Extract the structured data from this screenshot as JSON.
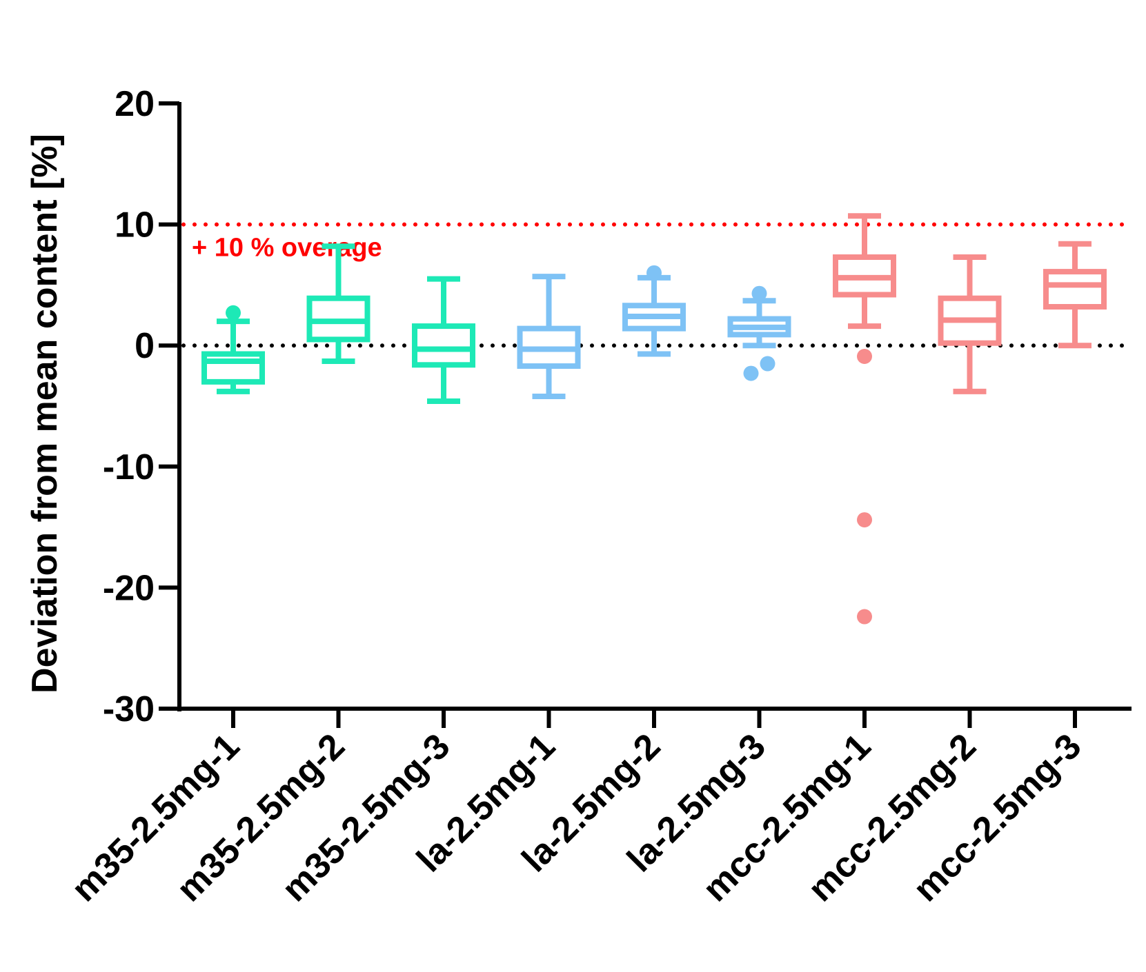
{
  "chart_data": {
    "type": "box",
    "title": "",
    "xlabel": "",
    "ylabel": "Deviation from mean content [%]",
    "ylim": [
      -30,
      20
    ],
    "yticks": [
      20,
      10,
      0,
      -10,
      -20,
      -30
    ],
    "grid": false,
    "legend": "none",
    "reference_lines": [
      {
        "name": "overage-line",
        "y": 10,
        "color": "#ff0000",
        "style": "dotted",
        "label": "+ 10 % overage"
      },
      {
        "name": "zero-line",
        "y": 0,
        "color": "#000000",
        "style": "dotted",
        "label": ""
      }
    ],
    "categories": [
      "m35-2.5mg-1",
      "m35-2.5mg-2",
      "m35-2.5mg-3",
      "la-2.5mg-1",
      "la-2.5mg-2",
      "la-2.5mg-3",
      "mcc-2.5mg-1",
      "mcc-2.5mg-2",
      "mcc-2.5mg-3"
    ],
    "series": [
      {
        "name": "m35-2.5mg-1",
        "color": "#1de9b6",
        "whisker_low": -3.8,
        "q1": -3.0,
        "median": -1.3,
        "q3": -0.7,
        "whisker_high": 2.0,
        "outliers": [
          2.7
        ]
      },
      {
        "name": "m35-2.5mg-2",
        "color": "#1de9b6",
        "whisker_low": -1.3,
        "q1": 0.5,
        "median": 2.0,
        "q3": 3.9,
        "whisker_high": 8.2,
        "outliers": []
      },
      {
        "name": "m35-2.5mg-3",
        "color": "#1de9b6",
        "whisker_low": -4.6,
        "q1": -1.6,
        "median": -0.3,
        "q3": 1.6,
        "whisker_high": 5.5,
        "outliers": []
      },
      {
        "name": "la-2.5mg-1",
        "color": "#7ec2f5",
        "whisker_low": -4.2,
        "q1": -1.7,
        "median": -0.3,
        "q3": 1.4,
        "whisker_high": 5.7,
        "outliers": []
      },
      {
        "name": "la-2.5mg-2",
        "color": "#7ec2f5",
        "whisker_low": -0.7,
        "q1": 1.4,
        "median": 2.4,
        "q3": 3.3,
        "whisker_high": 5.6,
        "outliers": [
          6.0
        ]
      },
      {
        "name": "la-2.5mg-3",
        "color": "#7ec2f5",
        "whisker_low": 0.0,
        "q1": 0.9,
        "median": 1.5,
        "q3": 2.2,
        "whisker_high": 3.7,
        "outliers": [
          4.3,
          -1.5,
          -2.3
        ]
      },
      {
        "name": "mcc-2.5mg-1",
        "color": "#f78c8c",
        "whisker_low": 1.6,
        "q1": 4.2,
        "median": 5.6,
        "q3": 7.3,
        "whisker_high": 10.7,
        "outliers": [
          -0.9,
          -14.4,
          -22.4
        ]
      },
      {
        "name": "mcc-2.5mg-2",
        "color": "#f78c8c",
        "whisker_low": -3.8,
        "q1": 0.2,
        "median": 2.1,
        "q3": 3.9,
        "whisker_high": 7.3,
        "outliers": []
      },
      {
        "name": "mcc-2.5mg-3",
        "color": "#f78c8c",
        "whisker_low": 0.0,
        "q1": 3.2,
        "median": 5.0,
        "q3": 6.1,
        "whisker_high": 8.4,
        "outliers": []
      }
    ]
  }
}
